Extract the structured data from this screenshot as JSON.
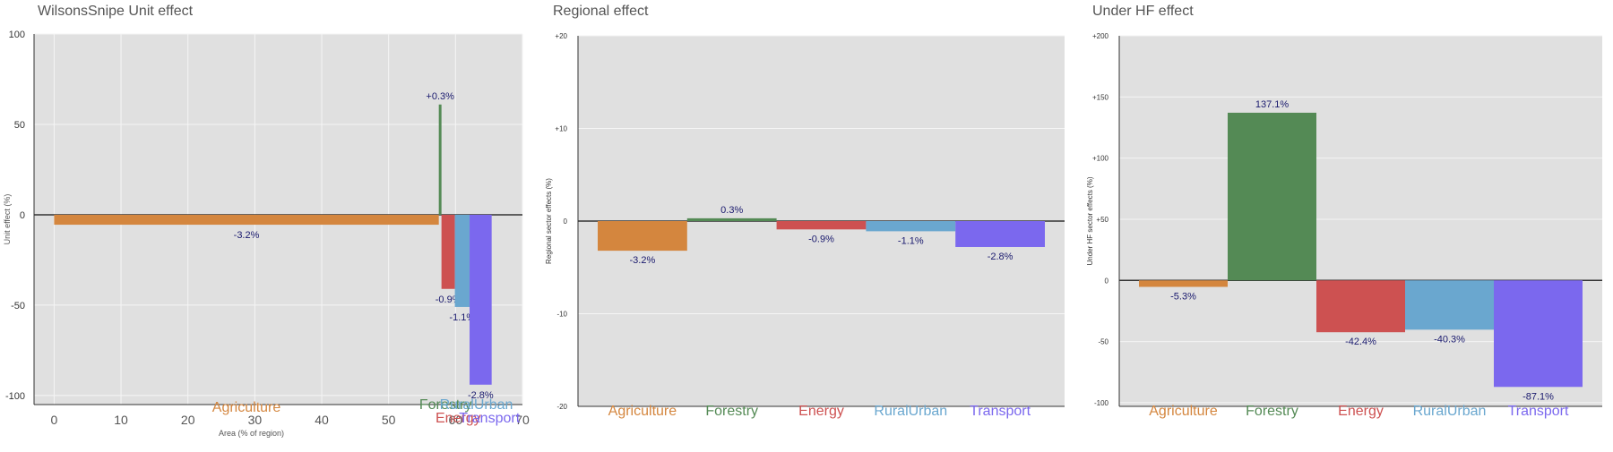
{
  "chart_data": [
    {
      "type": "bar",
      "title": "WilsonsSnipe Unit effect",
      "xlabel": "Area (% of region)",
      "ylabel": "Unit effect (%)",
      "xlim": [
        -3,
        70
      ],
      "ylim": [
        -105,
        100
      ],
      "xticks": [
        0,
        10,
        20,
        30,
        40,
        50,
        60,
        70
      ],
      "yticks": [
        -100,
        -50,
        0,
        50,
        100
      ],
      "grid": true,
      "bars": [
        {
          "category": "Agriculture",
          "color": "#d4863e",
          "x_start": 0,
          "x_end": 57.5,
          "value": -5.5,
          "label": "-3.2%"
        },
        {
          "category": "Forestry",
          "color": "#548a55",
          "x_start": 57.5,
          "x_end": 57.9,
          "value": 61,
          "label": "+0.3%"
        },
        {
          "category": "Energy",
          "color": "#cd5151",
          "x_start": 57.9,
          "x_end": 59.9,
          "value": -41,
          "label": "-0.9%"
        },
        {
          "category": "RuralUrban",
          "color": "#6aa7cf",
          "x_start": 59.9,
          "x_end": 62.1,
          "value": -51,
          "label": "-1.1%"
        },
        {
          "category": "Transport",
          "color": "#7b68ee",
          "x_start": 62.1,
          "x_end": 65.4,
          "value": -94,
          "label": "-2.8%"
        }
      ]
    },
    {
      "type": "bar",
      "title": "Regional effect",
      "xlabel": "",
      "ylabel": "Regional sector effects (%)",
      "ylim": [
        -20,
        20
      ],
      "yticks": [
        -20,
        -10,
        0,
        10,
        20
      ],
      "ytick_labels": [
        "-20",
        "-10",
        "0",
        "+10",
        "+20"
      ],
      "grid": true,
      "categories": [
        "Agriculture",
        "Forestry",
        "Energy",
        "RuralUrban",
        "Transport"
      ],
      "colors": [
        "#d4863e",
        "#548a55",
        "#cd5151",
        "#6aa7cf",
        "#7b68ee"
      ],
      "values": [
        -3.2,
        0.3,
        -0.9,
        -1.1,
        -2.8
      ],
      "labels": [
        "-3.2%",
        "0.3%",
        "-0.9%",
        "-1.1%",
        "-2.8%"
      ]
    },
    {
      "type": "bar",
      "title": "Under HF effect",
      "xlabel": "",
      "ylabel": "Under HF sector effects (%)",
      "ylim": [
        -103,
        200
      ],
      "yticks": [
        -100,
        -50,
        0,
        50,
        100,
        150,
        200
      ],
      "ytick_labels": [
        "-100",
        "-50",
        "0",
        "+50",
        "+100",
        "+150",
        "+200"
      ],
      "grid": true,
      "categories": [
        "Agriculture",
        "Forestry",
        "Energy",
        "RuralUrban",
        "Transport"
      ],
      "colors": [
        "#d4863e",
        "#548a55",
        "#cd5151",
        "#6aa7cf",
        "#7b68ee"
      ],
      "values": [
        -5.3,
        137.1,
        -42.4,
        -40.3,
        -87.1
      ],
      "labels": [
        "-5.3%",
        "137.1%",
        "-42.4%",
        "-40.3%",
        "-87.1%"
      ]
    }
  ]
}
